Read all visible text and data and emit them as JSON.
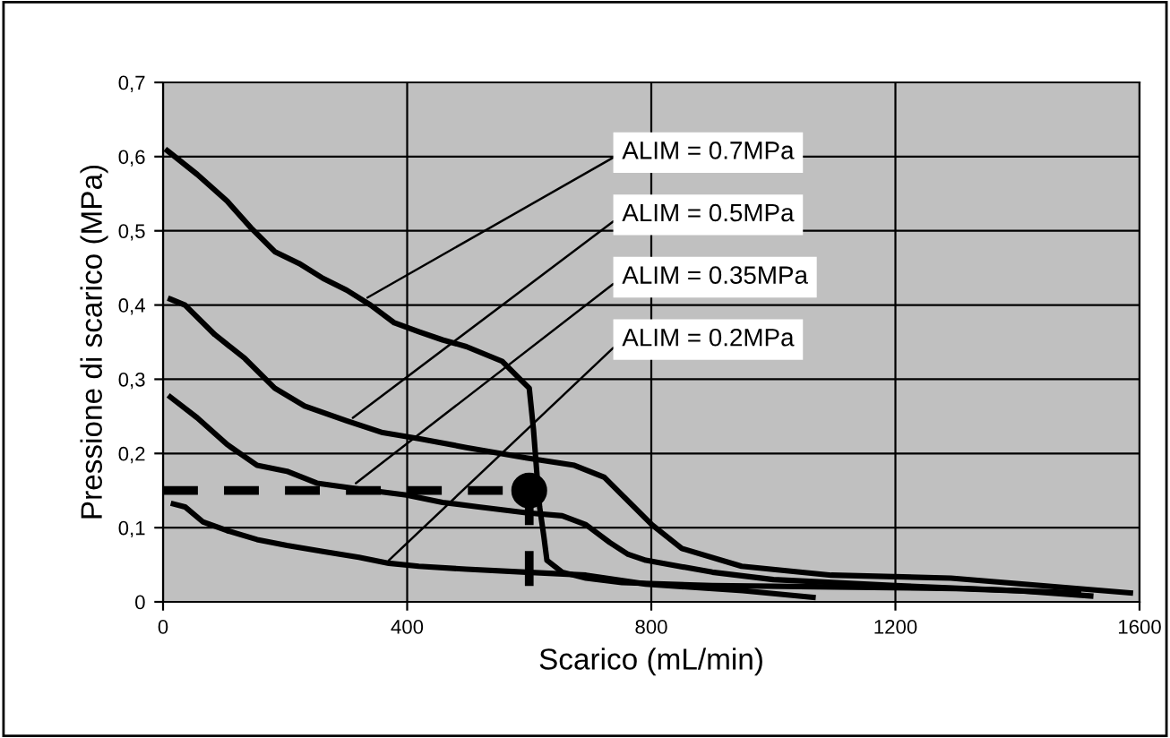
{
  "chart_data": {
    "type": "line",
    "xlabel": "Scarico (mL/min)",
    "ylabel": "Pressione di scarico (MPa)",
    "xlim": [
      0,
      1600
    ],
    "xticks": [
      0,
      400,
      800,
      1200,
      1600
    ],
    "ylim": [
      0,
      0.7
    ],
    "yticks": [
      {
        "value": 0,
        "label": "0"
      },
      {
        "value": 0.1,
        "label": "0,1"
      },
      {
        "value": 0.2,
        "label": "0,2"
      },
      {
        "value": 0.3,
        "label": "0,3"
      },
      {
        "value": 0.4,
        "label": "0,4"
      },
      {
        "value": 0.5,
        "label": "0,5"
      },
      {
        "value": 0.6,
        "label": "0,6"
      },
      {
        "value": 0.7,
        "label": "0,7"
      }
    ],
    "grid": true,
    "legend": false,
    "series": [
      {
        "color": "#000000",
        "x": [
          7,
          56,
          105,
          144,
          183,
          223,
          262,
          301,
          340,
          379,
          419,
          458,
          497,
          556,
          585,
          600,
          607,
          613,
          617,
          624,
          629,
          654,
          693,
          752,
          900,
          1100,
          1300,
          1500
        ],
        "values": [
          0.608,
          0.576,
          0.54,
          0.504,
          0.472,
          0.456,
          0.436,
          0.42,
          0.4,
          0.376,
          0.364,
          0.353,
          0.344,
          0.324,
          0.3,
          0.288,
          0.232,
          0.168,
          0.128,
          0.088,
          0.056,
          0.04,
          0.032,
          0.026,
          0.022,
          0.02,
          0.018,
          0.012
        ]
      },
      {
        "color": "#000000",
        "x": [
          12,
          36,
          85,
          134,
          183,
          232,
          301,
          360,
          419,
          497,
          595,
          674,
          723,
          762,
          801,
          850,
          948,
          1095,
          1291,
          1585
        ],
        "values": [
          0.408,
          0.4,
          0.36,
          0.328,
          0.288,
          0.264,
          0.244,
          0.228,
          0.22,
          0.208,
          0.194,
          0.184,
          0.168,
          0.136,
          0.104,
          0.072,
          0.048,
          0.036,
          0.032,
          0.012
        ]
      },
      {
        "color": "#000000",
        "x": [
          12,
          56,
          105,
          154,
          203,
          252,
          321,
          399,
          458,
          517,
          595,
          654,
          693,
          732,
          762,
          791,
          900,
          1000,
          1200,
          1400,
          1520
        ],
        "values": [
          0.276,
          0.248,
          0.212,
          0.184,
          0.176,
          0.16,
          0.152,
          0.144,
          0.134,
          0.128,
          0.12,
          0.116,
          0.104,
          0.08,
          0.064,
          0.056,
          0.04,
          0.03,
          0.022,
          0.015,
          0.008
        ]
      },
      {
        "color": "#000000",
        "x": [
          17,
          36,
          65,
          105,
          154,
          203,
          262,
          321,
          370,
          419,
          497,
          595,
          693,
          791,
          950,
          1065
        ],
        "values": [
          0.132,
          0.128,
          0.108,
          0.096,
          0.084,
          0.076,
          0.068,
          0.06,
          0.052,
          0.048,
          0.044,
          0.04,
          0.036,
          0.024,
          0.015,
          0.006
        ]
      },
      {
        "color": "#000000",
        "line_style": "dashed",
        "x": [
          0,
          600,
          600
        ],
        "values": [
          0.15,
          0.15,
          0
        ]
      },
      {
        "type": "scatter",
        "color": "#000000",
        "marker": "circle",
        "x": [
          600
        ],
        "values": [
          0.15
        ]
      }
    ],
    "annotations": [
      {
        "text": "ALIM = 0.7MPa",
        "x": 335,
        "y": 0.41
      },
      {
        "text": "ALIM = 0.5MPa",
        "x": 311,
        "y": 0.248
      },
      {
        "text": "ALIM = 0.35MPa",
        "x": 316,
        "y": 0.16
      },
      {
        "text": "ALIM = 0.2MPa",
        "x": 370,
        "y": 0.056
      }
    ]
  }
}
